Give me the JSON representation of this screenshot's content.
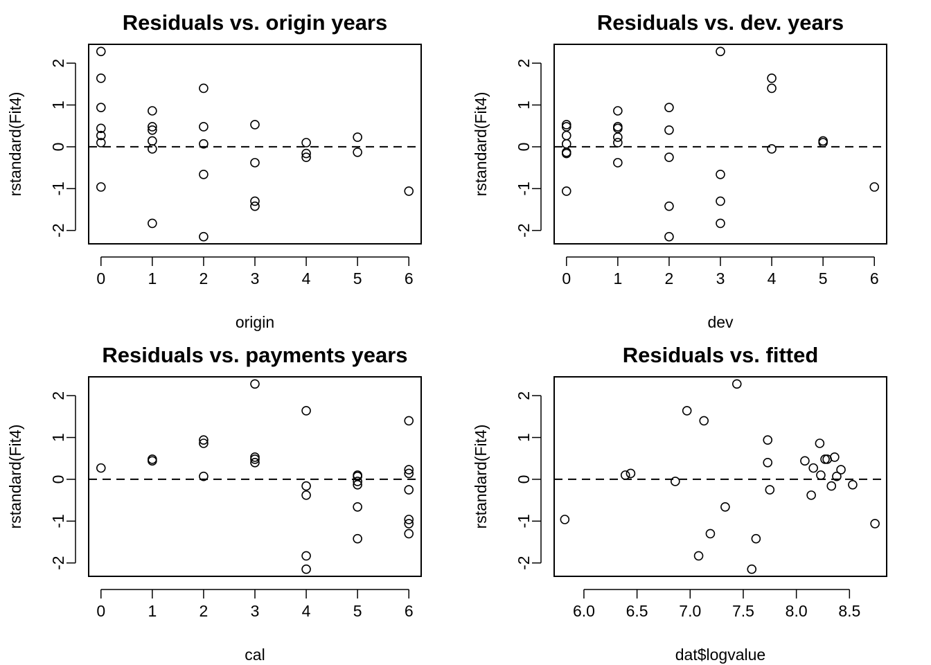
{
  "chart_data": [
    {
      "type": "scatter",
      "title": "Residuals vs. origin years",
      "xlabel": "origin",
      "ylabel": "rstandard(Fit4)",
      "xlim": [
        -0.24,
        6.24
      ],
      "ylim": [
        -2.32,
        2.45
      ],
      "xticks": [
        0,
        1,
        2,
        3,
        4,
        5,
        6
      ],
      "xtick_labels": [
        "0",
        "1",
        "2",
        "3",
        "4",
        "5",
        "6"
      ],
      "yticks": [
        -2,
        -1,
        0,
        1,
        2
      ],
      "ytick_labels": [
        "-2",
        "-1",
        "0",
        "1",
        "2"
      ],
      "reference_line": {
        "y": 0,
        "style": "dashed"
      },
      "grid": false,
      "points": [
        {
          "x": 0,
          "y": 2.28
        },
        {
          "x": 0,
          "y": 1.64
        },
        {
          "x": 0,
          "y": 0.94
        },
        {
          "x": 0,
          "y": 0.44
        },
        {
          "x": 0,
          "y": 0.27
        },
        {
          "x": 0,
          "y": 0.1
        },
        {
          "x": 0,
          "y": -0.96
        },
        {
          "x": 1,
          "y": 0.86
        },
        {
          "x": 1,
          "y": 0.48
        },
        {
          "x": 1,
          "y": 0.4
        },
        {
          "x": 1,
          "y": 0.14
        },
        {
          "x": 1,
          "y": -0.05
        },
        {
          "x": 1,
          "y": -1.83
        },
        {
          "x": 2,
          "y": 1.4
        },
        {
          "x": 2,
          "y": 0.48
        },
        {
          "x": 2,
          "y": 0.07
        },
        {
          "x": 2,
          "y": -0.66
        },
        {
          "x": 2,
          "y": -2.15
        },
        {
          "x": 3,
          "y": 0.53
        },
        {
          "x": 3,
          "y": -0.38
        },
        {
          "x": 3,
          "y": -1.3
        },
        {
          "x": 3,
          "y": -1.42
        },
        {
          "x": 4,
          "y": 0.1
        },
        {
          "x": 4,
          "y": -0.16
        },
        {
          "x": 4,
          "y": -0.25
        },
        {
          "x": 5,
          "y": 0.23
        },
        {
          "x": 5,
          "y": -0.13
        },
        {
          "x": 6,
          "y": -1.06
        }
      ]
    },
    {
      "type": "scatter",
      "title": "Residuals vs. dev. years",
      "xlabel": "dev",
      "ylabel": "rstandard(Fit4)",
      "xlim": [
        -0.24,
        6.24
      ],
      "ylim": [
        -2.32,
        2.45
      ],
      "xticks": [
        0,
        1,
        2,
        3,
        4,
        5,
        6
      ],
      "xtick_labels": [
        "0",
        "1",
        "2",
        "3",
        "4",
        "5",
        "6"
      ],
      "yticks": [
        -2,
        -1,
        0,
        1,
        2
      ],
      "ytick_labels": [
        "-2",
        "-1",
        "0",
        "1",
        "2"
      ],
      "reference_line": {
        "y": 0,
        "style": "dashed"
      },
      "grid": false,
      "points": [
        {
          "x": 0,
          "y": 0.53
        },
        {
          "x": 0,
          "y": 0.48
        },
        {
          "x": 0,
          "y": 0.27
        },
        {
          "x": 0,
          "y": 0.07
        },
        {
          "x": 0,
          "y": -0.13
        },
        {
          "x": 0,
          "y": -0.16
        },
        {
          "x": 0,
          "y": -1.06
        },
        {
          "x": 1,
          "y": 0.86
        },
        {
          "x": 1,
          "y": 0.48
        },
        {
          "x": 1,
          "y": 0.44
        },
        {
          "x": 1,
          "y": 0.23
        },
        {
          "x": 1,
          "y": 0.1
        },
        {
          "x": 1,
          "y": -0.38
        },
        {
          "x": 2,
          "y": 0.94
        },
        {
          "x": 2,
          "y": 0.4
        },
        {
          "x": 2,
          "y": -0.25
        },
        {
          "x": 2,
          "y": -1.42
        },
        {
          "x": 2,
          "y": -2.15
        },
        {
          "x": 3,
          "y": 2.28
        },
        {
          "x": 3,
          "y": -0.66
        },
        {
          "x": 3,
          "y": -1.3
        },
        {
          "x": 3,
          "y": -1.83
        },
        {
          "x": 4,
          "y": 1.64
        },
        {
          "x": 4,
          "y": 1.4
        },
        {
          "x": 4,
          "y": -0.05
        },
        {
          "x": 5,
          "y": 0.14
        },
        {
          "x": 5,
          "y": 0.1
        },
        {
          "x": 6,
          "y": -0.96
        }
      ]
    },
    {
      "type": "scatter",
      "title": "Residuals vs. payments years",
      "xlabel": "cal",
      "ylabel": "rstandard(Fit4)",
      "xlim": [
        -0.24,
        6.24
      ],
      "ylim": [
        -2.32,
        2.45
      ],
      "xticks": [
        0,
        1,
        2,
        3,
        4,
        5,
        6
      ],
      "xtick_labels": [
        "0",
        "1",
        "2",
        "3",
        "4",
        "5",
        "6"
      ],
      "yticks": [
        -2,
        -1,
        0,
        1,
        2
      ],
      "ytick_labels": [
        "-2",
        "-1",
        "0",
        "1",
        "2"
      ],
      "reference_line": {
        "y": 0,
        "style": "dashed"
      },
      "grid": false,
      "points": [
        {
          "x": 0,
          "y": 0.27
        },
        {
          "x": 1,
          "y": 0.48
        },
        {
          "x": 1,
          "y": 0.44
        },
        {
          "x": 2,
          "y": 0.94
        },
        {
          "x": 2,
          "y": 0.86
        },
        {
          "x": 2,
          "y": 0.07
        },
        {
          "x": 3,
          "y": 2.28
        },
        {
          "x": 3,
          "y": 0.53
        },
        {
          "x": 3,
          "y": 0.48
        },
        {
          "x": 3,
          "y": 0.4
        },
        {
          "x": 4,
          "y": 1.64
        },
        {
          "x": 4,
          "y": -0.16
        },
        {
          "x": 4,
          "y": -0.38
        },
        {
          "x": 4,
          "y": -1.83
        },
        {
          "x": 4,
          "y": -2.15
        },
        {
          "x": 5,
          "y": 0.1
        },
        {
          "x": 5,
          "y": 0.07
        },
        {
          "x": 5,
          "y": -0.05
        },
        {
          "x": 5,
          "y": -0.13
        },
        {
          "x": 5,
          "y": -0.66
        },
        {
          "x": 5,
          "y": -1.42
        },
        {
          "x": 6,
          "y": 1.4
        },
        {
          "x": 6,
          "y": 0.23
        },
        {
          "x": 6,
          "y": 0.14
        },
        {
          "x": 6,
          "y": -0.25
        },
        {
          "x": 6,
          "y": -0.96
        },
        {
          "x": 6,
          "y": -1.06
        },
        {
          "x": 6,
          "y": -1.3
        }
      ]
    },
    {
      "type": "scatter",
      "title": "Residuals vs. fitted",
      "xlabel": "dat$logvalue",
      "ylabel": "rstandard(Fit4)",
      "xlim": [
        5.72,
        8.85
      ],
      "ylim": [
        -2.32,
        2.45
      ],
      "xticks": [
        6.0,
        6.5,
        7.0,
        7.5,
        8.0,
        8.5
      ],
      "xtick_labels": [
        "6.0",
        "6.5",
        "7.0",
        "7.5",
        "8.0",
        "8.5"
      ],
      "yticks": [
        -2,
        -1,
        0,
        1,
        2
      ],
      "ytick_labels": [
        "-2",
        "-1",
        "0",
        "1",
        "2"
      ],
      "reference_line": {
        "y": 0,
        "style": "dashed"
      },
      "grid": false,
      "points": [
        {
          "x": 5.82,
          "y": -0.96
        },
        {
          "x": 6.39,
          "y": 0.1
        },
        {
          "x": 6.44,
          "y": 0.14
        },
        {
          "x": 6.86,
          "y": -0.05
        },
        {
          "x": 6.97,
          "y": 1.64
        },
        {
          "x": 7.08,
          "y": -1.83
        },
        {
          "x": 7.13,
          "y": 1.4
        },
        {
          "x": 7.19,
          "y": -1.3
        },
        {
          "x": 7.33,
          "y": -0.66
        },
        {
          "x": 7.44,
          "y": 2.28
        },
        {
          "x": 7.58,
          "y": -2.15
        },
        {
          "x": 7.62,
          "y": -1.42
        },
        {
          "x": 7.73,
          "y": 0.94
        },
        {
          "x": 7.73,
          "y": 0.4
        },
        {
          "x": 7.75,
          "y": -0.25
        },
        {
          "x": 8.08,
          "y": 0.44
        },
        {
          "x": 8.14,
          "y": -0.38
        },
        {
          "x": 8.16,
          "y": 0.27
        },
        {
          "x": 8.22,
          "y": 0.86
        },
        {
          "x": 8.23,
          "y": 0.1
        },
        {
          "x": 8.27,
          "y": 0.48
        },
        {
          "x": 8.29,
          "y": 0.48
        },
        {
          "x": 8.33,
          "y": -0.16
        },
        {
          "x": 8.36,
          "y": 0.53
        },
        {
          "x": 8.38,
          "y": 0.07
        },
        {
          "x": 8.42,
          "y": 0.23
        },
        {
          "x": 8.53,
          "y": -0.13
        },
        {
          "x": 8.74,
          "y": -1.06
        }
      ]
    }
  ]
}
